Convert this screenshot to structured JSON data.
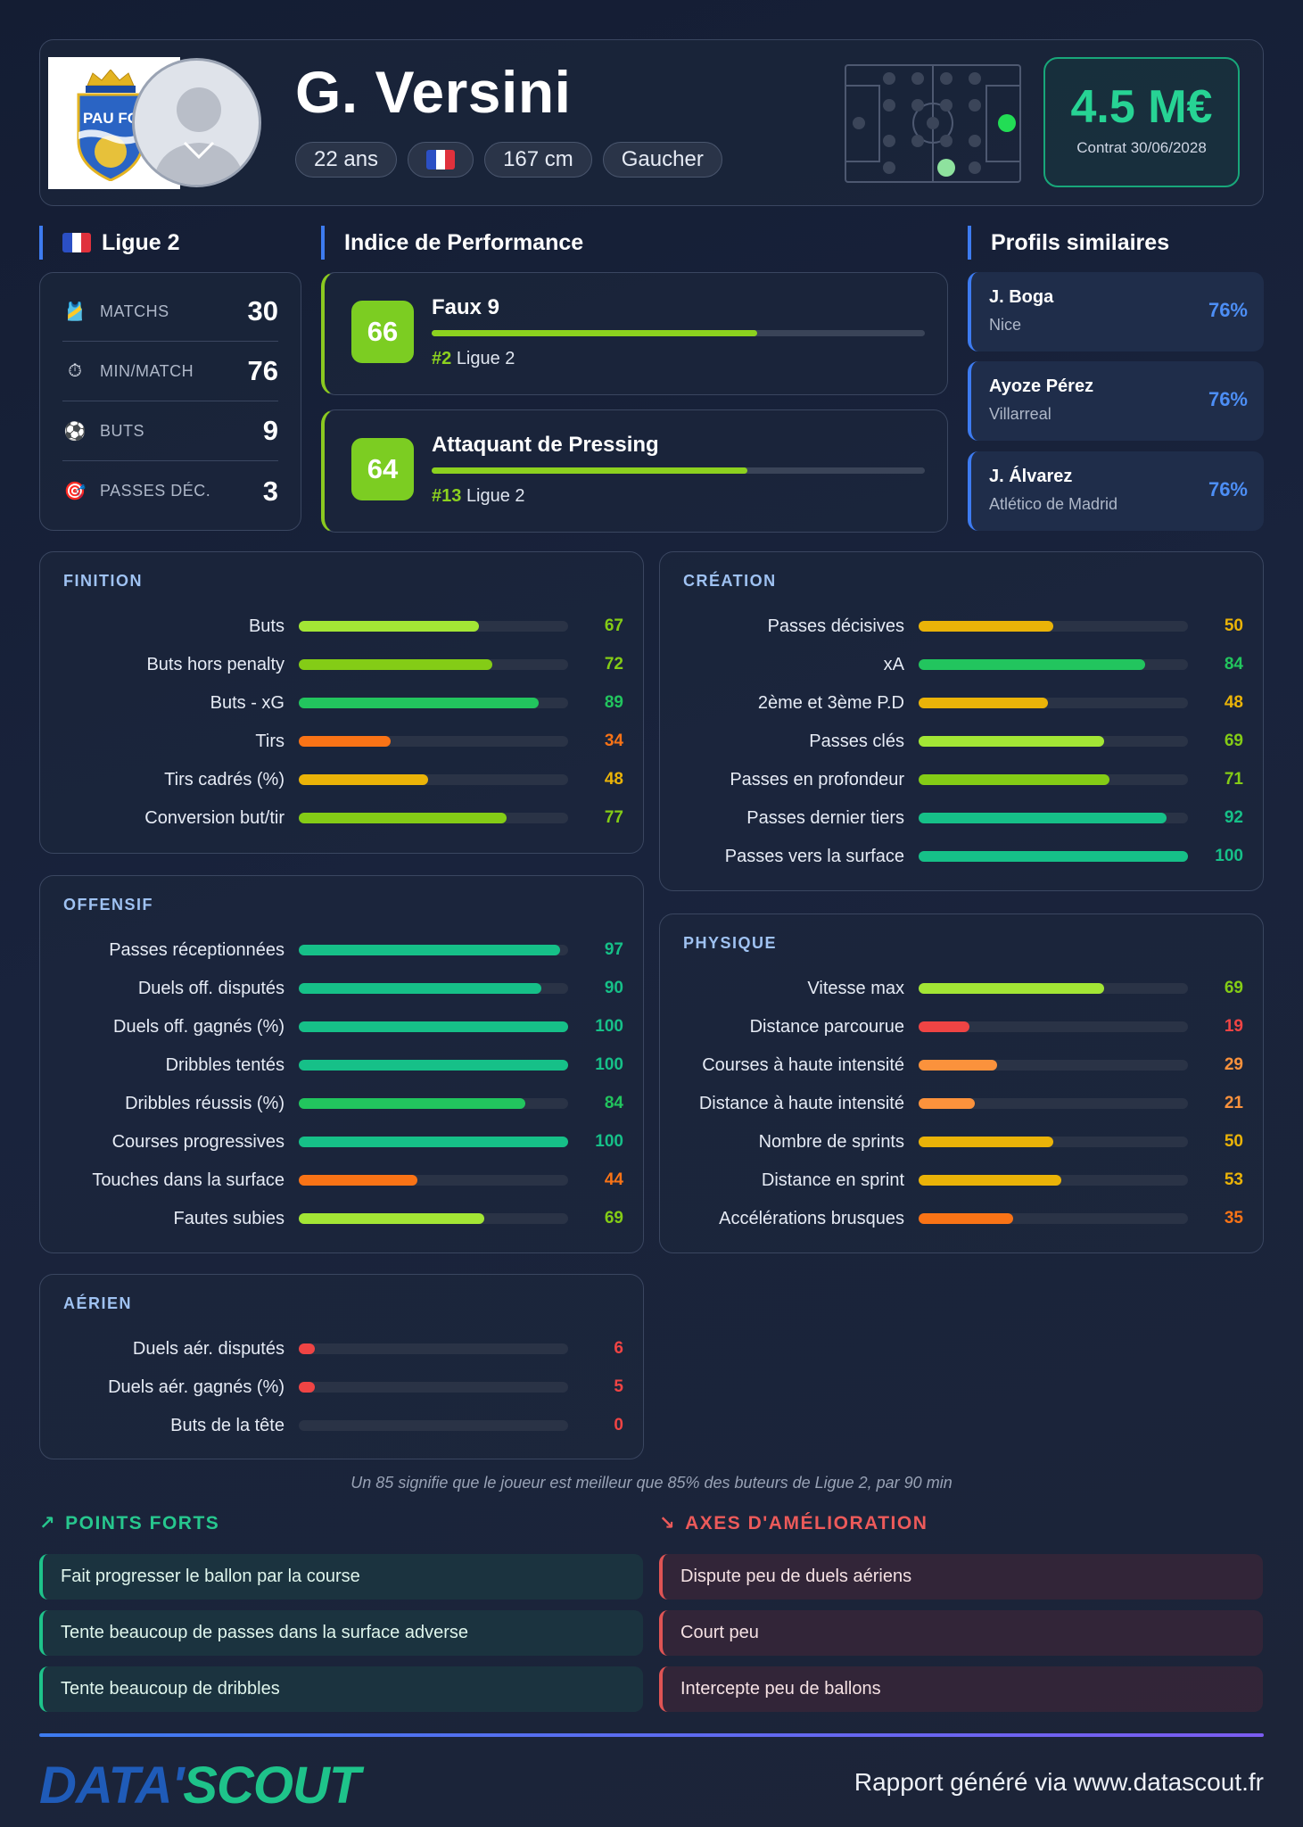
{
  "player": {
    "name": "G. Versini",
    "age": "22 ans",
    "height": "167 cm",
    "foot": "Gaucher",
    "nationality_flag": "france-flag",
    "club_logo_text": "PAU FC"
  },
  "value": {
    "amount": "4.5 M€",
    "contract": "Contrat 30/06/2028"
  },
  "league": {
    "name": "Ligue 2",
    "stats": [
      {
        "icon": "shirt-icon",
        "label": "MATCHS",
        "value": "30"
      },
      {
        "icon": "stopwatch-icon",
        "label": "MIN/MATCH",
        "value": "76"
      },
      {
        "icon": "ball-icon",
        "label": "BUTS",
        "value": "9"
      },
      {
        "icon": "target-icon",
        "label": "PASSES DÉC.",
        "value": "3"
      }
    ]
  },
  "performance": {
    "title": "Indice de Performance",
    "items": [
      {
        "score": "66",
        "role": "Faux 9",
        "rank": "#2",
        "league": "Ligue 2",
        "fill": 0.66
      },
      {
        "score": "64",
        "role": "Attaquant de Pressing",
        "rank": "#13",
        "league": "Ligue 2",
        "fill": 0.64
      }
    ]
  },
  "similar": {
    "title": "Profils similaires",
    "items": [
      {
        "name": "J. Boga",
        "club": "Nice",
        "pct": "76%"
      },
      {
        "name": "Ayoze Pérez",
        "club": "Villarreal",
        "pct": "76%"
      },
      {
        "name": "J. Álvarez",
        "club": "Atlético de Madrid",
        "pct": "76%"
      }
    ]
  },
  "panels": {
    "finition": {
      "title": "FINITION",
      "metrics": [
        {
          "label": "Buts",
          "value": 67
        },
        {
          "label": "Buts hors penalty",
          "value": 72
        },
        {
          "label": "Buts - xG",
          "value": 89
        },
        {
          "label": "Tirs",
          "value": 34
        },
        {
          "label": "Tirs cadrés (%)",
          "value": 48
        },
        {
          "label": "Conversion but/tir",
          "value": 77
        }
      ]
    },
    "creation": {
      "title": "CRÉATION",
      "metrics": [
        {
          "label": "Passes décisives",
          "value": 50
        },
        {
          "label": "xA",
          "value": 84
        },
        {
          "label": "2ème et 3ème P.D",
          "value": 48
        },
        {
          "label": "Passes clés",
          "value": 69
        },
        {
          "label": "Passes en profondeur",
          "value": 71
        },
        {
          "label": "Passes dernier tiers",
          "value": 92
        },
        {
          "label": "Passes vers la surface",
          "value": 100
        }
      ]
    },
    "offensif": {
      "title": "OFFENSIF",
      "metrics": [
        {
          "label": "Passes réceptionnées",
          "value": 97
        },
        {
          "label": "Duels off. disputés",
          "value": 90
        },
        {
          "label": "Duels off. gagnés (%)",
          "value": 100
        },
        {
          "label": "Dribbles tentés",
          "value": 100
        },
        {
          "label": "Dribbles réussis (%)",
          "value": 84
        },
        {
          "label": "Courses progressives",
          "value": 100
        },
        {
          "label": "Touches dans la surface",
          "value": 44
        },
        {
          "label": "Fautes subies",
          "value": 69
        }
      ]
    },
    "physique": {
      "title": "PHYSIQUE",
      "metrics": [
        {
          "label": "Vitesse max",
          "value": 69
        },
        {
          "label": "Distance parcourue",
          "value": 19
        },
        {
          "label": "Courses à haute intensité",
          "value": 29
        },
        {
          "label": "Distance à haute intensité",
          "value": 21
        },
        {
          "label": "Nombre de sprints",
          "value": 50
        },
        {
          "label": "Distance en sprint",
          "value": 53
        },
        {
          "label": "Accélérations brusques",
          "value": 35
        }
      ]
    },
    "aerien": {
      "title": "AÉRIEN",
      "metrics": [
        {
          "label": "Duels aér. disputés",
          "value": 6
        },
        {
          "label": "Duels aér. gagnés (%)",
          "value": 5
        },
        {
          "label": "Buts de la tête",
          "value": 0
        }
      ]
    }
  },
  "note": "Un 85 signifie que le joueur est meilleur que 85% des buteurs de Ligue 2, par 90 min",
  "strengths": {
    "title": "POINTS FORTS",
    "color": "#27c78e",
    "items": [
      "Fait progresser le ballon par la course",
      "Tente beaucoup de passes dans la surface adverse",
      "Tente beaucoup de dribbles"
    ]
  },
  "weaknesses": {
    "title": "AXES D'AMÉLIORATION",
    "color": "#ec5a5a",
    "items": [
      "Dispute peu de duels aériens",
      "Court peu",
      "Intercepte peu de ballons"
    ]
  },
  "footer": {
    "logo_part1": "DATA'",
    "logo_part2": "SCOUT",
    "text": "Rapport généré via www.datascout.fr"
  }
}
